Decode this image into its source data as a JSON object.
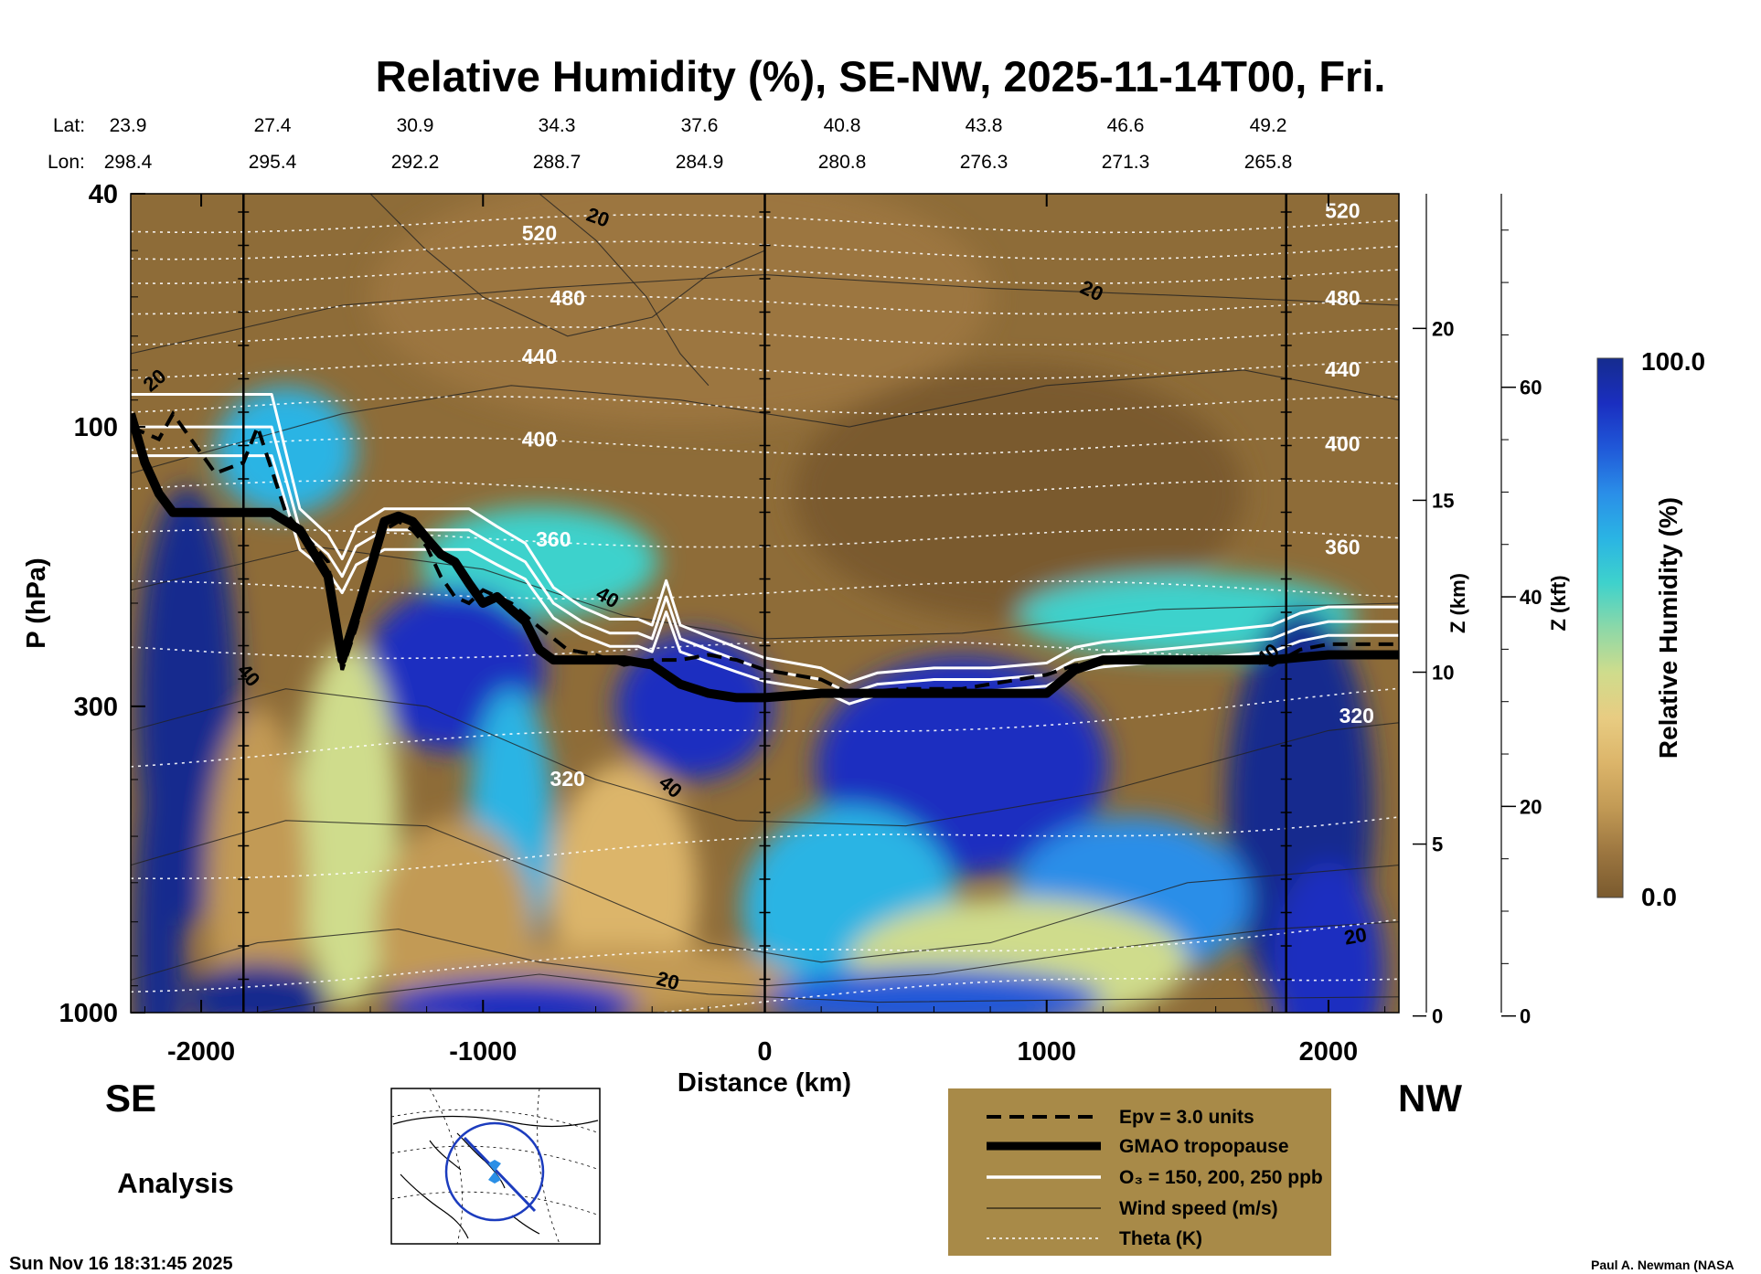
{
  "chart_data": {
    "type": "heatmap",
    "title": "Relative Humidity (%), SE-NW, 2025-11-14T00, Fri.",
    "xlabel": "Distance (km)",
    "ylabel": "P (hPa)",
    "y2label": "Z (km)",
    "y3label": "Z (kft)",
    "xlim": [
      -2250,
      2250
    ],
    "x_ticks": [
      -2000,
      -1000,
      0,
      1000,
      2000
    ],
    "x_tick_labels": [
      "-2000",
      "-1000",
      "0",
      "1000",
      "2000"
    ],
    "y_scale": "log",
    "ylim": [
      1000,
      40
    ],
    "y_ticks": [
      40,
      100,
      300,
      1000
    ],
    "y_tick_labels": [
      "40",
      "100",
      "300",
      "1000"
    ],
    "z_km_ticks": [
      0,
      5,
      10,
      15,
      20
    ],
    "z_km_tick_labels": [
      "0",
      "5",
      "10",
      "15",
      "20"
    ],
    "z_kft_ticks": [
      0,
      20,
      40,
      60
    ],
    "z_kft_tick_labels": [
      "0",
      "20",
      "40",
      "60"
    ],
    "lat_label": "Lat:",
    "lon_label": "Lon:",
    "lat_values": [
      "23.9",
      "27.4",
      "30.9",
      "34.3",
      "37.6",
      "40.8",
      "43.8",
      "46.6",
      "49.2"
    ],
    "lon_values": [
      "298.4",
      "295.4",
      "292.2",
      "288.7",
      "284.9",
      "280.8",
      "276.3",
      "271.3",
      "265.8"
    ],
    "vertical_markers_km": [
      -1850,
      0,
      1850
    ],
    "colorbar": {
      "label": "Relative Humidity (%)",
      "min_label": "0.0",
      "max_label": "100.0",
      "min": 0,
      "max": 100,
      "colors": [
        "#7a5a2e",
        "#9c7640",
        "#c29a55",
        "#dcb56a",
        "#e8cc82",
        "#cfdc8c",
        "#8cd8a8",
        "#3ed2cc",
        "#2ab4e4",
        "#2a8ee8",
        "#2058d8",
        "#1a2ec0",
        "#152c8e"
      ]
    },
    "tropopause": {
      "name": "GMAO tropopause",
      "x": [
        -2250,
        -2200,
        -2150,
        -2100,
        -1950,
        -1750,
        -1650,
        -1550,
        -1500,
        -1450,
        -1400,
        -1350,
        -1300,
        -1250,
        -1200,
        -1150,
        -1100,
        -1050,
        -1000,
        -950,
        -900,
        -850,
        -800,
        -750,
        -700,
        -600,
        -500,
        -400,
        -300,
        -200,
        -100,
        0,
        200,
        400,
        600,
        800,
        1000,
        1100,
        1200,
        1400,
        1600,
        1800,
        2000,
        2250
      ],
      "p": [
        95,
        115,
        130,
        140,
        140,
        140,
        150,
        180,
        250,
        210,
        175,
        145,
        142,
        145,
        155,
        165,
        170,
        185,
        200,
        195,
        205,
        215,
        240,
        250,
        250,
        250,
        250,
        255,
        275,
        285,
        290,
        290,
        285,
        285,
        285,
        285,
        285,
        260,
        250,
        250,
        250,
        250,
        245,
        245
      ]
    },
    "epv_line": {
      "name": "Epv = 3.0 units",
      "x": [
        -2250,
        -2150,
        -2100,
        -1950,
        -1850,
        -1800,
        -1700,
        -1650,
        -1550,
        -1500,
        -1450,
        -1400,
        -1350,
        -1300,
        -1250,
        -1200,
        -1150,
        -1100,
        -1050,
        -1000,
        -900,
        -800,
        -700,
        -600,
        -500,
        -400,
        -300,
        -200,
        -100,
        0,
        200,
        300,
        500,
        700,
        900,
        1000,
        1100,
        1300,
        1500,
        1700,
        1800,
        1900,
        2000,
        2250
      ],
      "p": [
        100,
        105,
        95,
        120,
        115,
        100,
        140,
        150,
        170,
        260,
        220,
        180,
        150,
        145,
        150,
        160,
        180,
        195,
        200,
        190,
        200,
        220,
        240,
        245,
        255,
        250,
        250,
        245,
        250,
        260,
        270,
        285,
        280,
        280,
        270,
        265,
        255,
        250,
        250,
        250,
        255,
        240,
        235,
        235
      ]
    },
    "ozone": {
      "name": "O₃ = 150, 200, 250 ppb",
      "levels_ppb": [
        150,
        200,
        250
      ],
      "x": [
        -2250,
        -2000,
        -1850,
        -1750,
        -1650,
        -1550,
        -1500,
        -1450,
        -1350,
        -1250,
        -1150,
        -1050,
        -950,
        -850,
        -750,
        -650,
        -550,
        -450,
        -400,
        -350,
        -300,
        -200,
        -100,
        0,
        200,
        300,
        400,
        600,
        800,
        1000,
        1100,
        1200,
        1400,
        1600,
        1800,
        1900,
        2000,
        2250
      ],
      "p": [
        100,
        100,
        100,
        100,
        150,
        165,
        180,
        160,
        150,
        150,
        150,
        150,
        160,
        170,
        200,
        215,
        225,
        225,
        230,
        195,
        230,
        240,
        250,
        260,
        270,
        285,
        275,
        270,
        270,
        265,
        250,
        245,
        240,
        235,
        230,
        220,
        215,
        215
      ],
      "offsets_hpa": [
        -12,
        0,
        12
      ]
    },
    "wind_labels": [
      "20",
      "20",
      "20",
      "40",
      "40",
      "40",
      "40",
      "20",
      "20"
    ],
    "theta_labels": [
      "520",
      "480",
      "440",
      "400",
      "360",
      "320",
      "520",
      "480",
      "440",
      "400",
      "360",
      "320"
    ],
    "legend": {
      "placement": "bottom-right",
      "entries": [
        "Epv = 3.0 units",
        "GMAO tropopause",
        "O₃ = 150, 200, 250 ppb",
        "Wind speed (m/s)",
        "Theta (K)"
      ]
    },
    "annotations": {
      "left_end": "SE",
      "right_end": "NW",
      "analysis": "Analysis",
      "timestamp": "Sun Nov 16 18:31:45 2025",
      "credit": "Paul A. Newman (NASA"
    }
  },
  "colors": {
    "background": "#ffffff",
    "legend_box": "#a88a48",
    "axis": "#000000",
    "theta_line": "#ffffff",
    "map_marker": "#2a6bdc"
  },
  "icons": {
    "inset_map": "globe-map-icon"
  }
}
